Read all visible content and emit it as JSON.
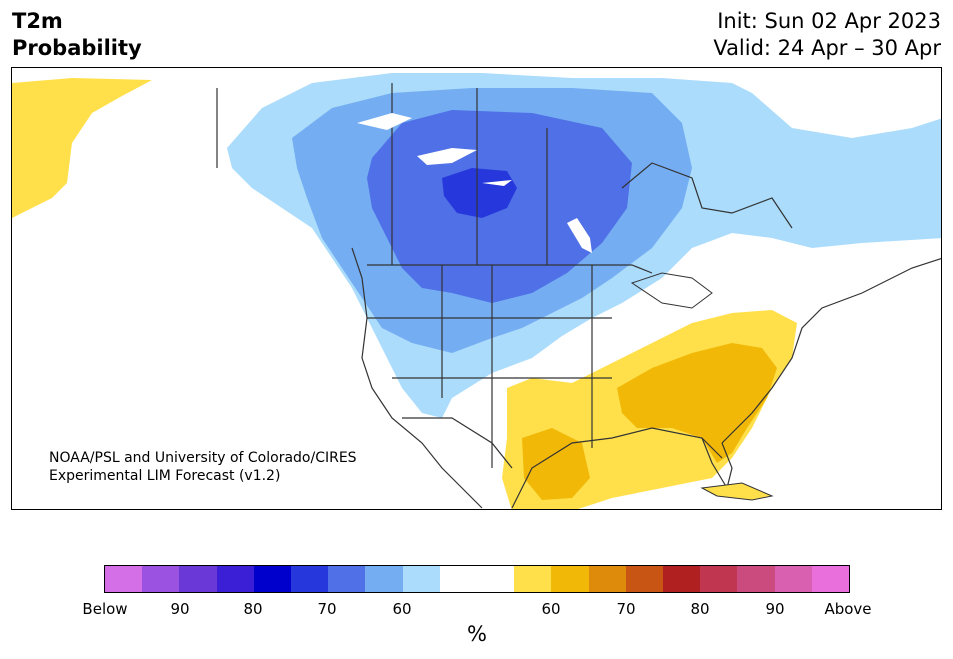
{
  "title": {
    "line1": "T2m",
    "line2": "Probability"
  },
  "header_right": {
    "init": "Init: Sun 02 Apr 2023",
    "valid": "Valid: 24 Apr – 30 Apr"
  },
  "credit": {
    "line1": "NOAA/PSL and University of Colorado/CIRES",
    "line2": "Experimental LIM Forecast (v1.2)"
  },
  "colorbar": {
    "colors": [
      "#d46fe8",
      "#9b52e0",
      "#6b38d8",
      "#3a1fd6",
      "#0000cd",
      "#2638db",
      "#4f70e6",
      "#74adf2",
      "#abdcfc",
      "#ffffff",
      "#ffffff",
      "#ffe04a",
      "#f2b807",
      "#de8a0b",
      "#c85514",
      "#b02020",
      "#c03550",
      "#cc4b7e",
      "#d95fb0",
      "#e86fdc"
    ],
    "ticks": [
      "Below",
      "90",
      "80",
      "70",
      "60",
      "60",
      "70",
      "80",
      "90",
      "Above"
    ],
    "unit": "%"
  },
  "map_colors": {
    "land": "#ffffff",
    "below_light": "#abdcfc",
    "below_mid": "#74adf2",
    "below_strong": "#4f70e6",
    "below_stronger": "#2638db",
    "above_light": "#ffe04a",
    "above_mid": "#f2b807",
    "border": "#333333"
  }
}
